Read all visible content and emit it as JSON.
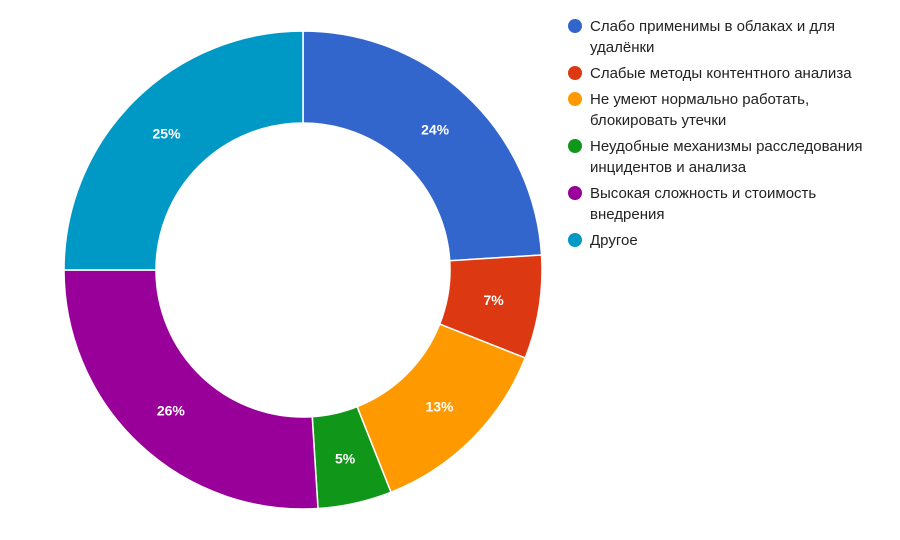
{
  "chart_data": {
    "type": "pie",
    "donut": true,
    "legend_position": "right",
    "start": "top, clockwise",
    "categories": [
      "Слабо применимы в облаках и для удалёнки",
      "Слабые методы контентного анализа",
      "Не умеют нормально работать, блокировать утечки",
      "Неудобные механизмы расследования инцидентов и анализа",
      "Высокая сложность и стоимость внедрения",
      "Другое"
    ],
    "values": [
      24,
      7,
      13,
      5,
      26,
      25
    ],
    "value_labels": [
      "24%",
      "7%",
      "13%",
      "5%",
      "26%",
      "25%"
    ],
    "colors": [
      "#3366cc",
      "#dc3912",
      "#ff9900",
      "#109618",
      "#990099",
      "#0099c6"
    ]
  }
}
